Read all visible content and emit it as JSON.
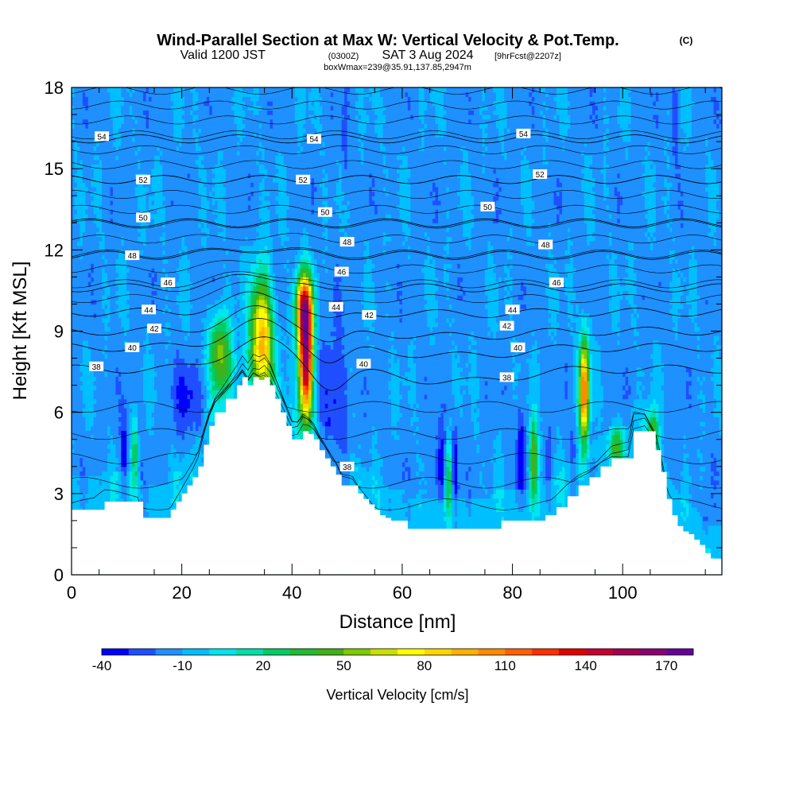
{
  "chart_data": {
    "type": "heatmap",
    "title": {
      "main": "Wind-Parallel Section at Max W: Vertical Velocity & Pot.Temp.",
      "copyright": "(C)",
      "line2_a": "Valid 1200 JST",
      "line2_b": "(0300Z)",
      "line2_c": "SAT 3 Aug 2024",
      "line2_d": "[9hrFcst@2207z]",
      "line3": "boxWmax=239@35.91,137.85,2947m"
    },
    "xlabel": "Distance [nm]",
    "ylabel": "Height [Kft MSL]",
    "xlim": [
      0,
      118
    ],
    "ylim": [
      0,
      18
    ],
    "x_ticks": [
      "0",
      "20",
      "40",
      "60",
      "80",
      "100"
    ],
    "y_ticks": [
      "0",
      "3",
      "6",
      "9",
      "12",
      "15",
      "18"
    ],
    "colorbar": {
      "label": "Vertical Velocity [cm/s]",
      "ticks": [
        "-40",
        "-10",
        "20",
        "50",
        "80",
        "110",
        "140",
        "170"
      ],
      "colors": [
        "#0000ff",
        "#1f4fff",
        "#1e90ff",
        "#00bfff",
        "#00e5ee",
        "#00dfaa",
        "#00cc66",
        "#22bb33",
        "#44b018",
        "#7fca00",
        "#c8e000",
        "#ffff00",
        "#ffd700",
        "#ffb000",
        "#ff8c00",
        "#ff6000",
        "#ff2f00",
        "#e00000",
        "#c40030",
        "#a00050",
        "#8b0070",
        "#660099"
      ],
      "bin_start": -40,
      "bin_step": 10
    },
    "terrain_kft": [
      [
        0,
        2.4
      ],
      [
        2,
        2.4
      ],
      [
        4,
        2.4
      ],
      [
        6,
        2.7
      ],
      [
        8,
        2.7
      ],
      [
        10,
        2.7
      ],
      [
        12,
        2.7
      ],
      [
        13,
        2.1
      ],
      [
        15,
        2.1
      ],
      [
        17,
        2.1
      ],
      [
        18,
        2.4
      ],
      [
        19,
        2.7
      ],
      [
        20,
        3.0
      ],
      [
        21,
        3.3
      ],
      [
        22,
        3.6
      ],
      [
        23,
        4.0
      ],
      [
        24,
        4.8
      ],
      [
        25,
        5.5
      ],
      [
        26,
        6.0
      ],
      [
        28,
        6.5
      ],
      [
        30,
        7.0
      ],
      [
        31,
        7.3
      ],
      [
        32,
        7.0
      ],
      [
        33,
        7.3
      ],
      [
        34,
        7.2
      ],
      [
        35,
        7.3
      ],
      [
        36,
        7.0
      ],
      [
        37,
        6.5
      ],
      [
        38,
        6.0
      ],
      [
        39,
        5.5
      ],
      [
        40,
        5.0
      ],
      [
        41,
        5.0
      ],
      [
        42,
        5.3
      ],
      [
        43,
        5.2
      ],
      [
        44,
        5.0
      ],
      [
        45,
        4.6
      ],
      [
        46,
        4.3
      ],
      [
        47,
        4.0
      ],
      [
        48,
        3.7
      ],
      [
        49,
        3.3
      ],
      [
        50,
        3.3
      ],
      [
        51,
        3.3
      ],
      [
        52,
        3.0
      ],
      [
        53,
        2.8
      ],
      [
        54,
        2.6
      ],
      [
        55,
        2.4
      ],
      [
        56,
        2.2
      ],
      [
        57,
        2.1
      ],
      [
        58,
        2.0
      ],
      [
        59,
        2.0
      ],
      [
        60,
        2.0
      ],
      [
        61,
        1.7
      ],
      [
        64,
        1.7
      ],
      [
        68,
        1.7
      ],
      [
        72,
        1.7
      ],
      [
        76,
        1.7
      ],
      [
        78,
        2.0
      ],
      [
        82,
        2.0
      ],
      [
        86,
        2.2
      ],
      [
        88,
        2.5
      ],
      [
        90,
        2.9
      ],
      [
        92,
        3.3
      ],
      [
        94,
        3.6
      ],
      [
        96,
        4.0
      ],
      [
        98,
        4.3
      ],
      [
        100,
        4.3
      ],
      [
        101,
        4.3
      ],
      [
        102,
        5.3
      ],
      [
        104,
        5.3
      ],
      [
        106,
        4.6
      ],
      [
        107,
        3.8
      ],
      [
        108,
        2.8
      ],
      [
        109,
        2.2
      ],
      [
        110,
        1.8
      ],
      [
        111,
        1.6
      ],
      [
        112,
        1.5
      ],
      [
        113,
        1.3
      ],
      [
        114,
        1.1
      ],
      [
        115,
        0.8
      ],
      [
        116,
        0.6
      ],
      [
        117,
        0.6
      ],
      [
        118,
        0.6
      ]
    ],
    "updrafts": [
      {
        "x": 34.5,
        "z": 8.8,
        "sx": 2.0,
        "sz": 2.2,
        "w": 95
      },
      {
        "x": 42.5,
        "z": 7.8,
        "sx": 1.3,
        "sz": 2.0,
        "w": 165
      },
      {
        "x": 42.2,
        "z": 9.9,
        "sx": 1.5,
        "sz": 1.2,
        "w": 120
      },
      {
        "x": 27.0,
        "z": 8.2,
        "sx": 2.0,
        "sz": 1.4,
        "w": 55
      },
      {
        "x": 93.0,
        "z": 6.8,
        "sx": 0.9,
        "sz": 1.9,
        "w": 115
      },
      {
        "x": 83.8,
        "z": 4.2,
        "sx": 0.8,
        "sz": 1.6,
        "w": 55
      },
      {
        "x": 68.5,
        "z": 3.5,
        "sx": 0.7,
        "sz": 1.5,
        "w": 40
      },
      {
        "x": 105.5,
        "z": 5.2,
        "sx": 1.0,
        "sz": 0.9,
        "w": 40
      },
      {
        "x": 98.8,
        "z": 4.7,
        "sx": 1.2,
        "sz": 0.7,
        "w": 35
      },
      {
        "x": 11.5,
        "z": 4.5,
        "sx": 0.6,
        "sz": 1.2,
        "w": 28
      }
    ],
    "downdrafts": [
      {
        "x": 47.5,
        "z": 6.5,
        "sx": 2.5,
        "sz": 2.3,
        "w": -35
      },
      {
        "x": 21.0,
        "z": 6.5,
        "sx": 3.0,
        "sz": 1.3,
        "w": -30
      },
      {
        "x": 9.5,
        "z": 4.5,
        "sx": 0.6,
        "sz": 1.5,
        "w": -38
      },
      {
        "x": 67.0,
        "z": 4.0,
        "sx": 1.0,
        "sz": 1.5,
        "w": -42
      },
      {
        "x": 69.5,
        "z": 4.0,
        "sx": 0.6,
        "sz": 1.7,
        "w": -40
      },
      {
        "x": 81.5,
        "z": 4.4,
        "sx": 0.8,
        "sz": 1.7,
        "w": -42
      },
      {
        "x": 86.5,
        "z": 3.8,
        "sx": 0.6,
        "sz": 1.3,
        "w": -30
      },
      {
        "x": 91.0,
        "z": 4.0,
        "sx": 0.8,
        "sz": 1.3,
        "w": -25
      },
      {
        "x": 110.5,
        "z": 4.8,
        "sx": 0.4,
        "sz": 1.5,
        "w": -25
      },
      {
        "x": 49.5,
        "z": 15.5,
        "sx": 0.5,
        "sz": 2.0,
        "w": -25
      },
      {
        "x": 109.5,
        "z": 17.0,
        "sx": 0.5,
        "sz": 1.8,
        "w": -25
      },
      {
        "x": 115.0,
        "z": 2.0,
        "sx": 0.5,
        "sz": 0.8,
        "w": -25
      }
    ],
    "theta_levels": [
      {
        "value": 38,
        "z": 7.6,
        "label_x": 4.5,
        "label_z": 7.7
      },
      {
        "value": 40,
        "z": 8.4,
        "label_x": 11.0,
        "label_z": 8.4
      },
      {
        "value": 42,
        "z": 9.0,
        "label_x": 15.0,
        "label_z": 9.1
      },
      {
        "value": 44,
        "z": 9.7,
        "label_x": 14.0,
        "label_z": 9.8
      },
      {
        "value": 46,
        "z": 10.6,
        "label_x": 17.5,
        "label_z": 10.8
      },
      {
        "value": 48,
        "z": 11.8,
        "label_x": 11.0,
        "label_z": 11.8
      },
      {
        "value": 50,
        "z": 13.0,
        "label_x": 13.0,
        "label_z": 13.2
      },
      {
        "value": 52,
        "z": 14.6,
        "label_x": 13.0,
        "label_z": 14.6
      },
      {
        "value": 54,
        "z": 16.1,
        "label_x": 5.5,
        "label_z": 16.2
      }
    ],
    "theta_labels_extra": [
      {
        "value": 54,
        "x": 44.0,
        "z": 16.1
      },
      {
        "value": 54,
        "x": 82.0,
        "z": 16.3
      },
      {
        "value": 52,
        "x": 42.0,
        "z": 14.6
      },
      {
        "value": 52,
        "x": 85.0,
        "z": 14.8
      },
      {
        "value": 50,
        "x": 46.0,
        "z": 13.4
      },
      {
        "value": 50,
        "x": 75.5,
        "z": 13.6
      },
      {
        "value": 48,
        "x": 50.0,
        "z": 12.3
      },
      {
        "value": 48,
        "x": 86.0,
        "z": 12.2
      },
      {
        "value": 46,
        "x": 49.0,
        "z": 11.2
      },
      {
        "value": 46,
        "x": 88.0,
        "z": 10.8
      },
      {
        "value": 44,
        "x": 48.0,
        "z": 9.9
      },
      {
        "value": 44,
        "x": 80.0,
        "z": 9.8
      },
      {
        "value": 42,
        "x": 54.0,
        "z": 9.6
      },
      {
        "value": 42,
        "x": 79.0,
        "z": 9.2
      },
      {
        "value": 40,
        "x": 53.0,
        "z": 7.8
      },
      {
        "value": 40,
        "x": 81.0,
        "z": 8.4
      },
      {
        "value": 38,
        "x": 79.0,
        "z": 7.3
      },
      {
        "value": 38,
        "x": 50.0,
        "z": 4.0
      }
    ],
    "grid": false,
    "legend": "bottom"
  }
}
